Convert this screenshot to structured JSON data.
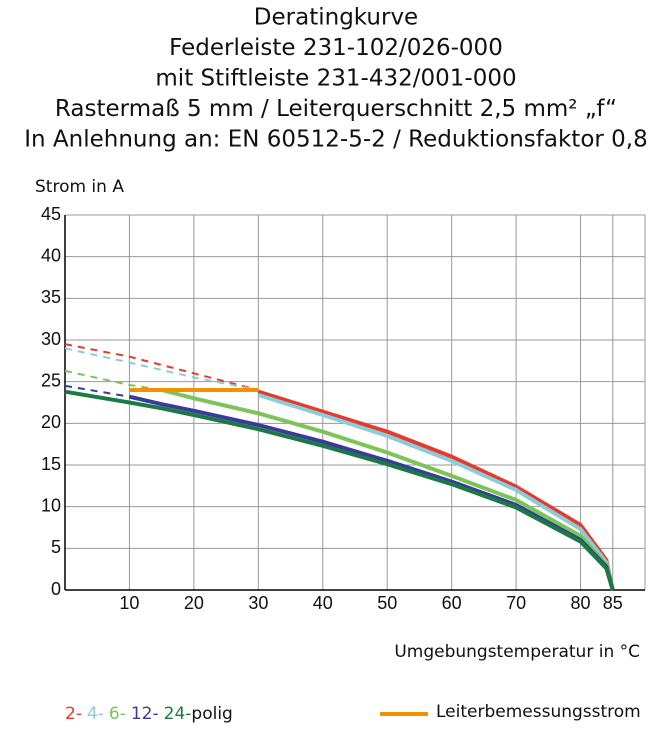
{
  "chart_data": {
    "type": "line",
    "title": [
      "Deratingkurve",
      "Federleiste 231-102/026-000",
      "mit Stiftleiste 231-432/001-000",
      "Rastermaß 5 mm / Leiterquerschnitt 2,5 mm² „f“",
      "In Anlehnung an: EN 60512-5-2 / Reduktionsfaktor 0,8"
    ],
    "y_label": "Strom in A",
    "x_label": "Umgebungstemperatur in °C",
    "legend_suffix": "polig",
    "x": [
      0,
      10,
      15,
      20,
      30,
      40,
      50,
      60,
      70,
      80,
      84,
      85
    ],
    "series": [
      {
        "name": "2-",
        "color": "#e63a2c",
        "values": [
          null,
          null,
          null,
          null,
          23.8,
          21.4,
          19,
          16,
          12.4,
          7.8,
          3.6,
          0
        ],
        "extrapolated_values": [
          29.5,
          28,
          27,
          26,
          24,
          null,
          null,
          null,
          null,
          null,
          null,
          null
        ]
      },
      {
        "name": "4-",
        "color": "#8ccbd8",
        "values": [
          null,
          null,
          null,
          null,
          23.4,
          21,
          18.5,
          15.5,
          12,
          7.3,
          3.3,
          0
        ],
        "extrapolated_values": [
          29,
          27.3,
          26.4,
          25.5,
          24,
          null,
          null,
          null,
          null,
          null,
          null,
          null
        ]
      },
      {
        "name": "6-",
        "color": "#7cc456",
        "values": [
          null,
          null,
          24,
          23,
          21.2,
          19,
          16.5,
          13.7,
          10.8,
          6.5,
          3,
          0
        ],
        "extrapolated_values": [
          26.3,
          24.6,
          24,
          null,
          null,
          null,
          null,
          null,
          null,
          null,
          null,
          null
        ]
      },
      {
        "name": "12-",
        "color": "#3a3a98",
        "values": [
          null,
          23.2,
          22.3,
          21.5,
          19.8,
          17.8,
          15.5,
          13,
          10.2,
          6,
          2.8,
          0
        ],
        "extrapolated_values": [
          24.5,
          23.2,
          null,
          null,
          null,
          null,
          null,
          null,
          null,
          null,
          null,
          null
        ]
      },
      {
        "name": "24-",
        "color": "#1a7a45",
        "values": [
          23.8,
          22.5,
          21.8,
          21,
          19.3,
          17.3,
          15.1,
          12.7,
          9.9,
          5.8,
          2.6,
          0
        ],
        "extrapolated_values": [
          null,
          null,
          null,
          null,
          null,
          null,
          null,
          null,
          null,
          null,
          null,
          null
        ]
      },
      {
        "name": "Leiterbemessungsstrom",
        "color": "#f39200",
        "values": [
          null,
          24,
          24,
          24,
          24,
          null,
          null,
          null,
          null,
          null,
          null,
          null
        ],
        "extrapolated_values": [
          null,
          null,
          null,
          null,
          null,
          null,
          null,
          null,
          null,
          null,
          null,
          null
        ]
      }
    ],
    "xlim": [
      0,
      90
    ],
    "ylim": [
      0,
      45
    ],
    "xticks": [
      10,
      20,
      30,
      40,
      50,
      60,
      70,
      80,
      85
    ],
    "yticks": [
      0,
      5,
      10,
      15,
      20,
      25,
      30,
      35,
      40,
      45
    ],
    "grid": true
  }
}
